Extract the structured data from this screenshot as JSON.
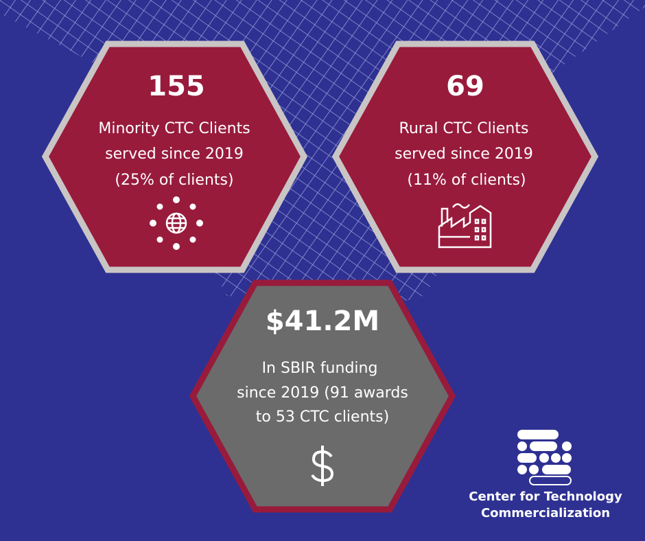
{
  "stats": [
    {
      "value": "155",
      "lines": [
        "Minority CTC Clients",
        "served since 2019",
        "(25% of clients)"
      ]
    },
    {
      "value": "69",
      "lines": [
        "Rural CTC Clients",
        "served since 2019",
        "(11% of clients)"
      ]
    },
    {
      "value": "$41.2M",
      "lines": [
        "In SBIR funding",
        "since 2019 (91 awards",
        "to 53 CTC clients)"
      ]
    }
  ],
  "logo": {
    "lines": [
      "Center for Technology",
      "Commercialization"
    ]
  }
}
